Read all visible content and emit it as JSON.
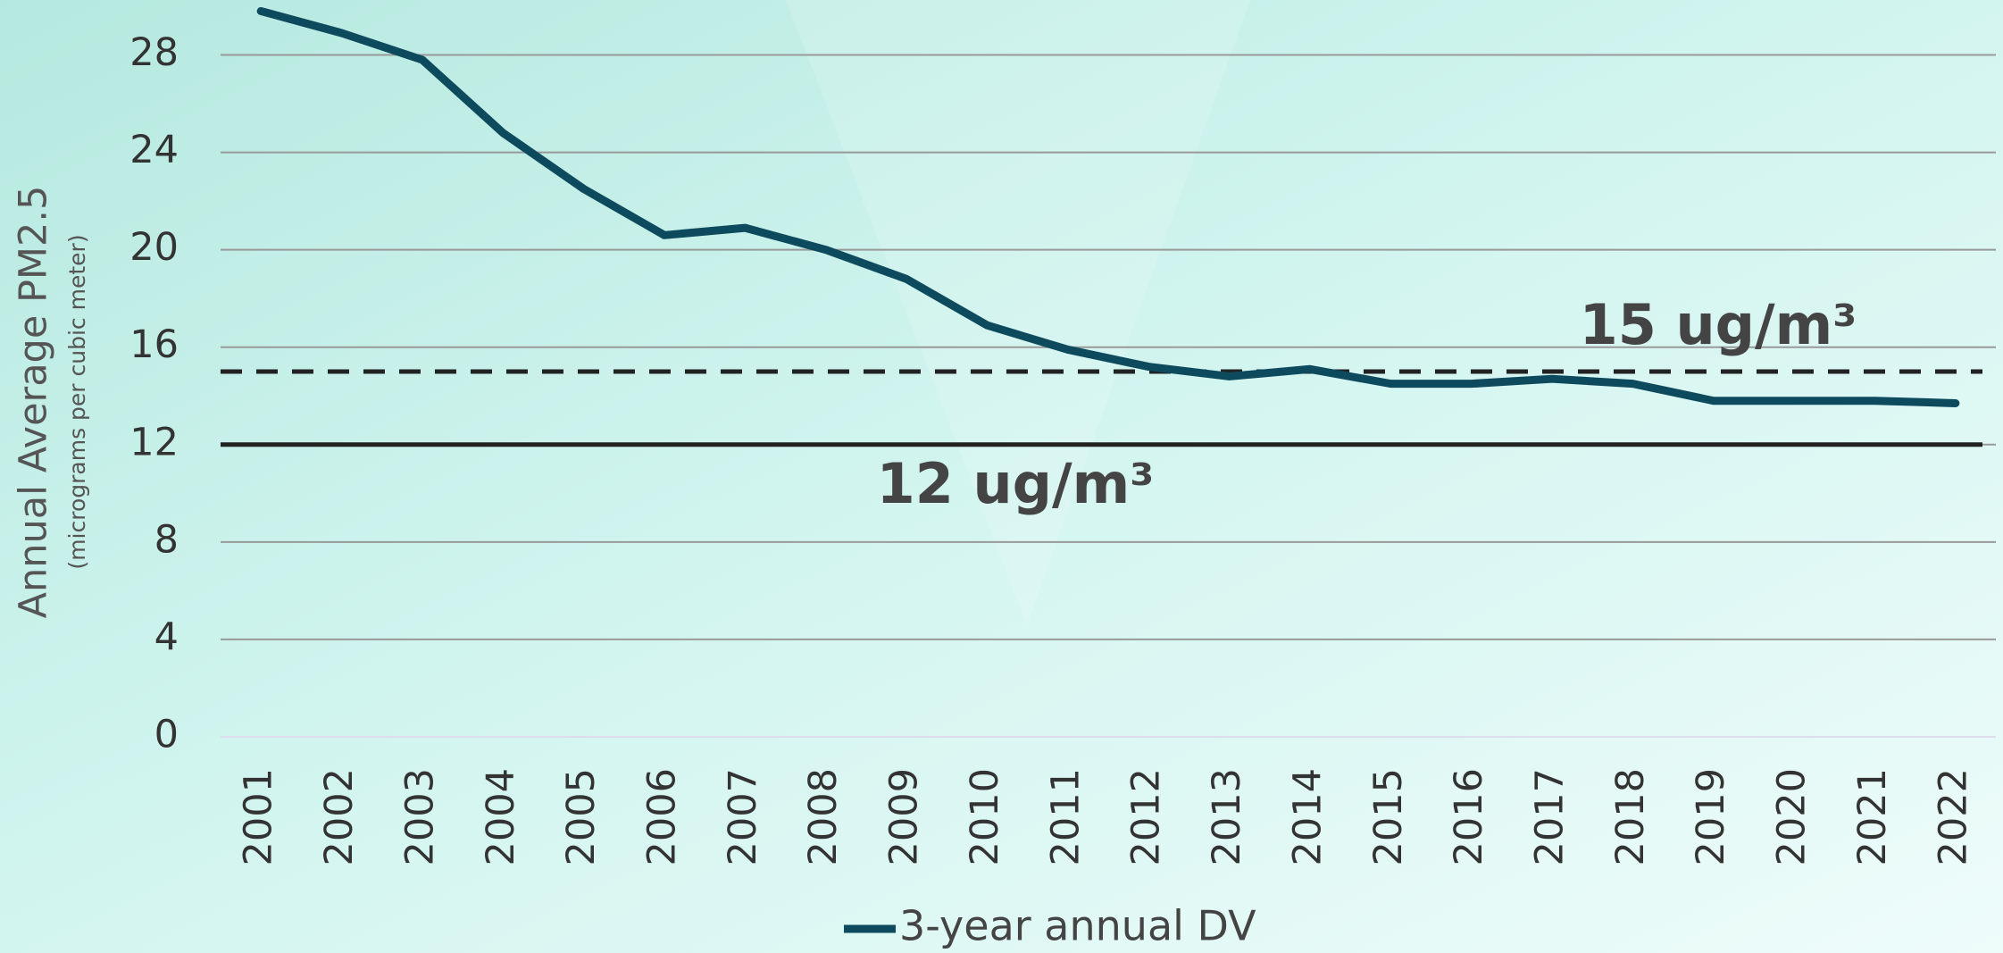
{
  "chart_data": {
    "type": "line",
    "y_axis_label": "Annual Average PM2.5",
    "y_axis_sublabel": "(micrograms per cubic meter)",
    "categories": [
      "2001",
      "2002",
      "2003",
      "2004",
      "2005",
      "2006",
      "2007",
      "2008",
      "2009",
      "2010",
      "2011",
      "2012",
      "2013",
      "2014",
      "2015",
      "2016",
      "2017",
      "2018",
      "2019",
      "2020",
      "2021",
      "2022"
    ],
    "series": [
      {
        "name": "3-year annual DV",
        "color": "#0e4a5e",
        "values": [
          29.8,
          28.9,
          27.8,
          24.8,
          22.5,
          20.6,
          20.9,
          20.0,
          18.8,
          16.9,
          15.9,
          15.2,
          14.8,
          15.1,
          14.5,
          14.5,
          14.7,
          14.5,
          13.8,
          13.8,
          13.8,
          13.7
        ]
      }
    ],
    "ylim": [
      0,
      30
    ],
    "yticks": [
      0,
      4,
      8,
      12,
      16,
      20,
      24,
      28
    ],
    "grid": true,
    "legend": "bottom",
    "annotations": [
      {
        "value": 15,
        "label": "15 ug/m³",
        "style": "dashed",
        "color": "#222222"
      },
      {
        "value": 12,
        "label": "12 ug/m³",
        "style": "solid",
        "color": "#222222"
      }
    ]
  }
}
